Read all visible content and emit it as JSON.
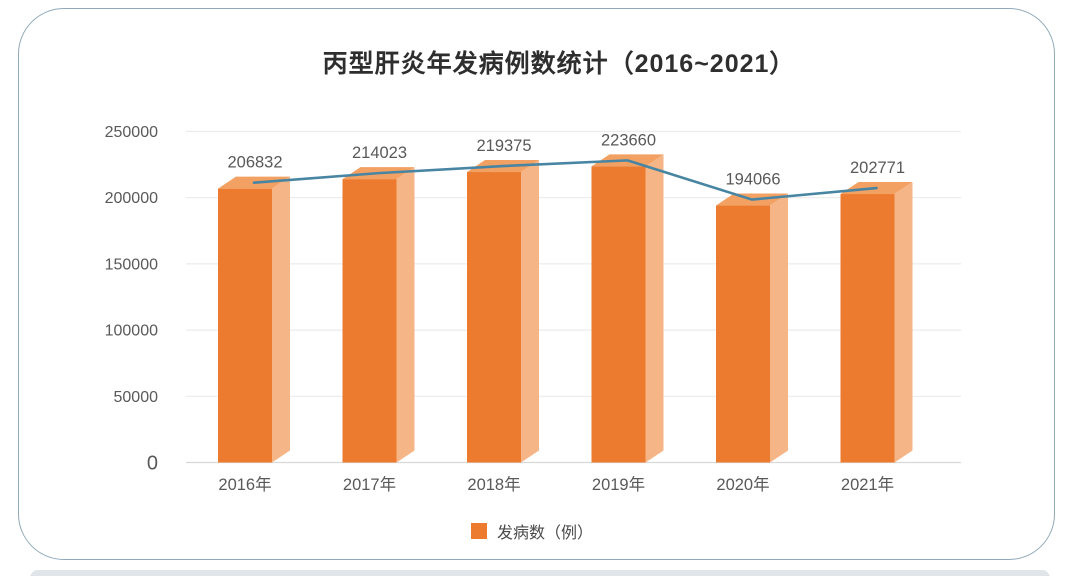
{
  "chart_data": {
    "type": "bar",
    "title": "丙型肝炎年发病例数统计（2016~2021）",
    "categories": [
      "2016年",
      "2017年",
      "2018年",
      "2019年",
      "2020年",
      "2021年"
    ],
    "series": [
      {
        "name": "发病数（例）",
        "type": "bar",
        "values": [
          206832,
          214023,
          219375,
          223660,
          194066,
          202771
        ],
        "color": "#EC7A2F"
      },
      {
        "name": "发病数（例）",
        "type": "line",
        "values": [
          206832,
          214023,
          219375,
          223660,
          194066,
          202771
        ],
        "color": "#4785A3"
      }
    ],
    "data_labels": [
      "206832",
      "214023",
      "219375",
      "223660",
      "194066",
      "202771"
    ],
    "ylim": [
      0,
      250000
    ],
    "yticks": [
      0,
      50000,
      100000,
      150000,
      200000,
      250000
    ],
    "xlabel": "",
    "ylabel": "",
    "grid": "horizontal",
    "legend_position": "bottom"
  },
  "legend": {
    "label": "发病数（例）",
    "swatch_color": "#EC7A2F"
  },
  "colors": {
    "bar_front": "#EC7A2F",
    "bar_top": "#F2A163",
    "bar_side": "#F6B586",
    "line": "#4785A3",
    "grid": "#ECECEC",
    "axis_line": "#D8D8D8",
    "tick_text": "#595959",
    "value_text": "#595959",
    "title_text": "#2e2e2e",
    "frame_border": "#8FA9B8"
  }
}
